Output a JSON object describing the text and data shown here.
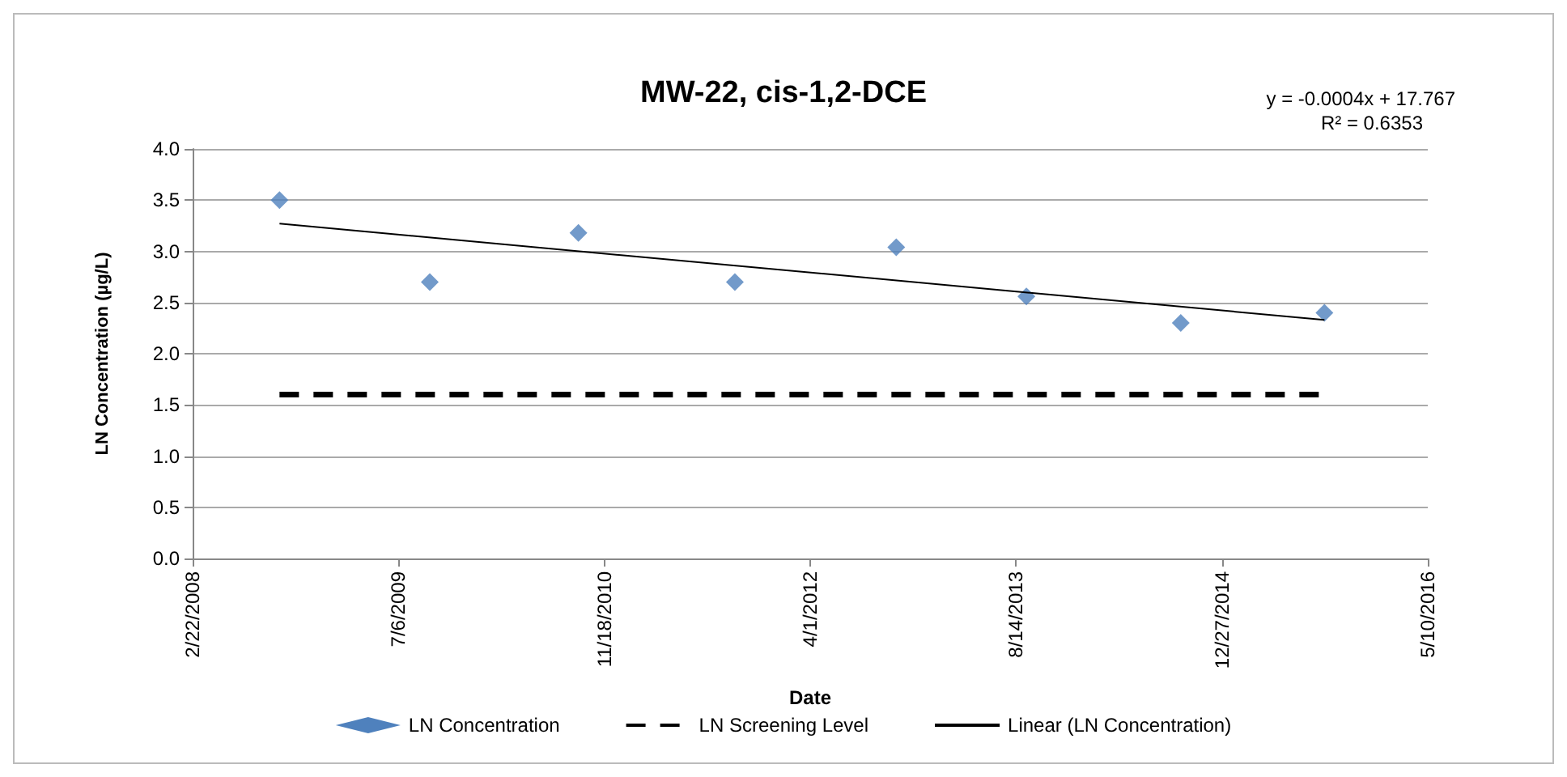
{
  "chart_data": {
    "type": "scatter",
    "title": "MW-22, cis-1,2-DCE",
    "xlabel": "Date",
    "ylabel": "LN Concentration (µg/L)",
    "series": [
      {
        "name": "LN Concentration",
        "color": "#4f81bd",
        "marker": "diamond",
        "x": [
          "2008-09-20",
          "2009-09-20",
          "2010-09-16",
          "2011-10-01",
          "2012-10-27",
          "2013-09-08",
          "2014-09-18",
          "2015-09-02"
        ],
        "values": [
          3.5,
          2.7,
          3.18,
          2.7,
          3.04,
          2.56,
          2.3,
          2.4
        ]
      },
      {
        "name": "LN Screening Level",
        "type": "line",
        "color": "#000000",
        "marker": "none",
        "line_style": "dashed",
        "x": [
          "2008-09-20",
          "2015-09-02"
        ],
        "values": [
          1.6,
          1.6
        ]
      },
      {
        "name": "Linear (LN Concentration)",
        "type": "line",
        "color": "#000000",
        "marker": "none",
        "line_style": "solid",
        "x": [
          "2008-09-20",
          "2015-09-02"
        ],
        "values": [
          3.27,
          2.33
        ]
      }
    ],
    "xlim": [
      "2008-02-22",
      "2016-05-10"
    ],
    "xticks": [
      {
        "value": "2008-02-22",
        "label": "2/22/2008"
      },
      {
        "value": "2009-07-06",
        "label": "7/6/2009"
      },
      {
        "value": "2010-11-18",
        "label": "11/18/2010"
      },
      {
        "value": "2012-04-01",
        "label": "4/1/2012"
      },
      {
        "value": "2013-08-14",
        "label": "8/14/2013"
      },
      {
        "value": "2014-12-27",
        "label": "12/27/2014"
      },
      {
        "value": "2016-05-10",
        "label": "5/10/2016"
      }
    ],
    "ylim": [
      0,
      4
    ],
    "yticks": [
      {
        "value": 0,
        "label": "0.0"
      },
      {
        "value": 0.5,
        "label": "0.5"
      },
      {
        "value": 1,
        "label": "1.0"
      },
      {
        "value": 1.5,
        "label": "1.5"
      },
      {
        "value": 2,
        "label": "2.0"
      },
      {
        "value": 2.5,
        "label": "2.5"
      },
      {
        "value": 3,
        "label": "3.0"
      },
      {
        "value": 3.5,
        "label": "3.5"
      },
      {
        "value": 4,
        "label": "4.0"
      }
    ],
    "annotations": [
      "y = -0.0004x + 17.767",
      "R² = 0.6353"
    ],
    "grid": "y",
    "legend": "bottom"
  }
}
